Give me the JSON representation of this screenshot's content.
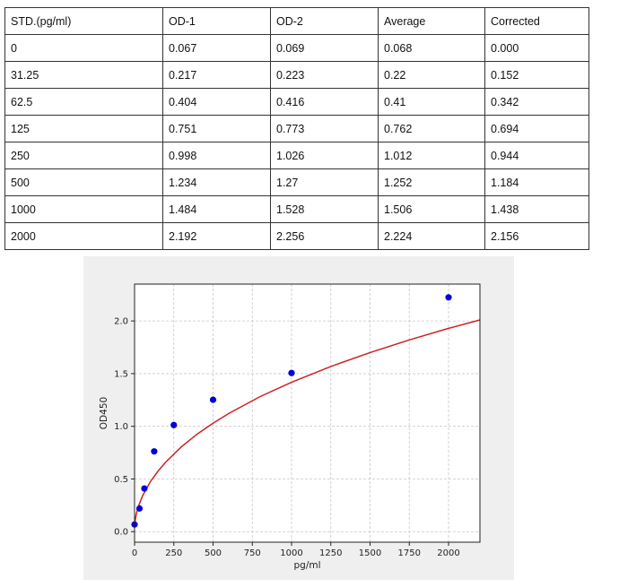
{
  "table": {
    "headers": [
      "STD.(pg/ml)",
      "OD-1",
      "OD-2",
      "Average",
      "Corrected"
    ],
    "rows": [
      [
        "0",
        "0.067",
        "0.069",
        "0.068",
        "0.000"
      ],
      [
        "31.25",
        "0.217",
        "0.223",
        "0.22",
        "0.152"
      ],
      [
        "62.5",
        "0.404",
        "0.416",
        "0.41",
        "0.342"
      ],
      [
        "125",
        "0.751",
        "0.773",
        "0.762",
        "0.694"
      ],
      [
        "250",
        "0.998",
        "1.026",
        "1.012",
        "0.944"
      ],
      [
        "500",
        "1.234",
        "1.27",
        "1.252",
        "1.184"
      ],
      [
        "1000",
        "1.484",
        "1.528",
        "1.506",
        "1.438"
      ],
      [
        "2000",
        "2.192",
        "2.256",
        "2.224",
        "2.156"
      ]
    ]
  },
  "chart_data": {
    "type": "scatter",
    "title": "",
    "xlabel": "pg/ml",
    "ylabel": "OD450",
    "xlim": [
      0,
      2200
    ],
    "ylim": [
      -0.1,
      2.35
    ],
    "xticks": [
      "0",
      "250",
      "500",
      "750",
      "1000",
      "1250",
      "1500",
      "1750",
      "2000"
    ],
    "yticks": [
      "0.0",
      "0.5",
      "1.0",
      "1.5",
      "2.0"
    ],
    "grid": true,
    "legend": "none",
    "series": [
      {
        "type": "scatter",
        "color": "#0000dd",
        "x": [
          0,
          31.25,
          62.5,
          125,
          250,
          500,
          1000,
          2000
        ],
        "y": [
          0.068,
          0.22,
          0.41,
          0.762,
          1.012,
          1.252,
          1.506,
          2.224
        ]
      },
      {
        "type": "line",
        "color": "#cc2222",
        "x": [
          0,
          10,
          25,
          50,
          100,
          150,
          200,
          300,
          400,
          500,
          600,
          800,
          1000,
          1250,
          1500,
          1750,
          2000,
          2200
        ],
        "y": [
          0.07,
          0.163,
          0.242,
          0.338,
          0.473,
          0.576,
          0.662,
          0.808,
          0.928,
          1.03,
          1.122,
          1.282,
          1.418,
          1.568,
          1.7,
          1.82,
          1.93,
          2.01
        ]
      }
    ],
    "colors": {
      "background": "#efefef",
      "plot_area": "#ffffff",
      "grid": "#c8c8c8"
    }
  }
}
